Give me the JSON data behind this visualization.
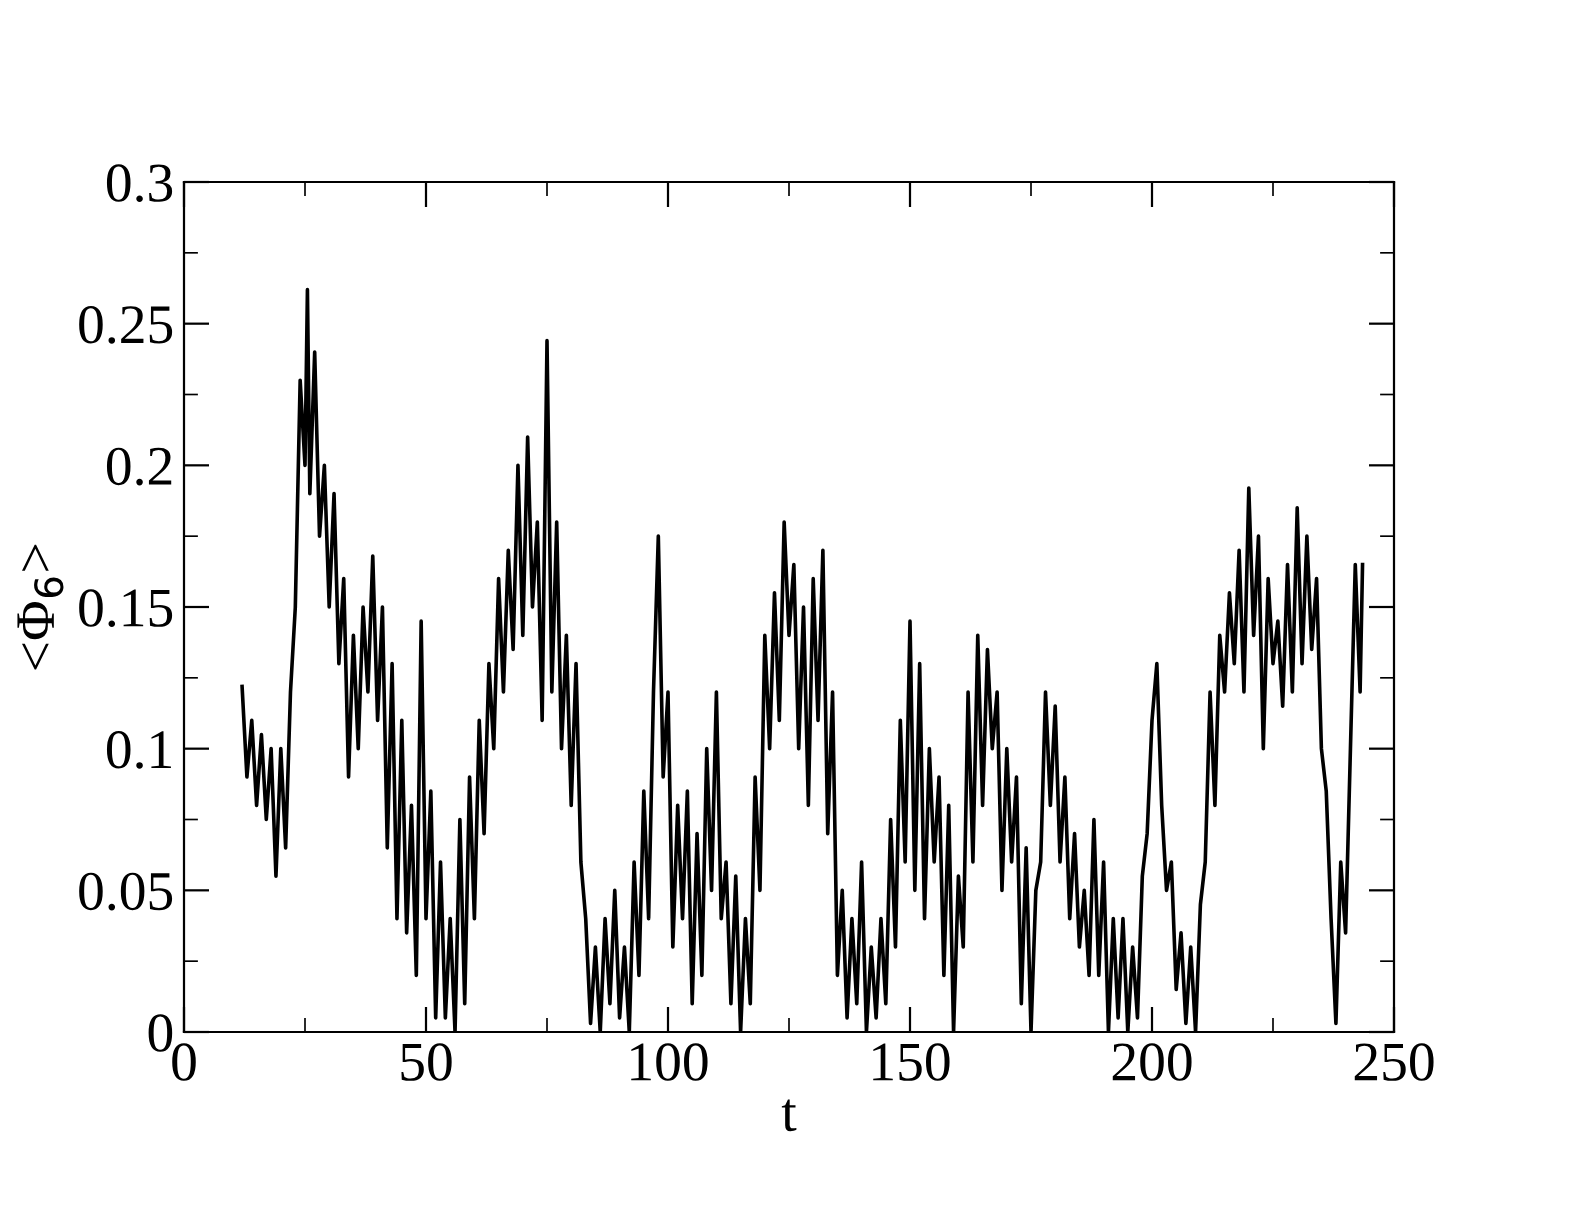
{
  "chart_data": {
    "type": "line",
    "xlabel": "t",
    "ylabel": "<Φ$_{6}$>",
    "xlim": [
      0,
      250
    ],
    "xticks": [
      0,
      50,
      100,
      150,
      200,
      250
    ],
    "ylim": [
      0,
      0.3
    ],
    "yticks": [
      0,
      0.05,
      0.1,
      0.15,
      0.2,
      0.25,
      0.3
    ],
    "grid": false,
    "legend": false,
    "marker": "none",
    "line_style": "solid",
    "series": [
      {
        "color": "#000000",
        "x": [
          12,
          13,
          14,
          15,
          16,
          17,
          18,
          19,
          20,
          21,
          22,
          23,
          24,
          25,
          25.5,
          26,
          27,
          28,
          29,
          30,
          31,
          32,
          33,
          34,
          35,
          36,
          37,
          38,
          39,
          40,
          41,
          42,
          43,
          44,
          45,
          46,
          47,
          48,
          49,
          50,
          51,
          52,
          53,
          54,
          55,
          56,
          57,
          58,
          59,
          60,
          61,
          62,
          63,
          64,
          65,
          66,
          67,
          68,
          69,
          70,
          71,
          72,
          73,
          74,
          75,
          76,
          77,
          78,
          79,
          80,
          81,
          82,
          83,
          84,
          85,
          86,
          87,
          88,
          89,
          90,
          91,
          92,
          93,
          94,
          95,
          96,
          97,
          98,
          99,
          100,
          101,
          102,
          103,
          104,
          105,
          106,
          107,
          108,
          109,
          110,
          111,
          112,
          113,
          114,
          115,
          116,
          117,
          118,
          119,
          120,
          121,
          122,
          123,
          124,
          125,
          126,
          127,
          128,
          129,
          130,
          131,
          132,
          133,
          134,
          135,
          136,
          137,
          138,
          139,
          140,
          141,
          142,
          143,
          144,
          145,
          146,
          147,
          148,
          149,
          150,
          151,
          152,
          153,
          154,
          155,
          156,
          157,
          158,
          159,
          160,
          161,
          162,
          163,
          164,
          165,
          166,
          167,
          168,
          169,
          170,
          171,
          172,
          173,
          174,
          175,
          176,
          177,
          178,
          179,
          180,
          181,
          182,
          183,
          184,
          185,
          186,
          187,
          188,
          189,
          190,
          191,
          192,
          193,
          194,
          195,
          196,
          197,
          198,
          199,
          200,
          201,
          202,
          203,
          204,
          205,
          206,
          207,
          208,
          209,
          210,
          211,
          212,
          213,
          214,
          215,
          216,
          217,
          218,
          219,
          220,
          221,
          222,
          223,
          224,
          225,
          226,
          227,
          228,
          229,
          230,
          231,
          232,
          233,
          234,
          235,
          236,
          237,
          238,
          239,
          240,
          241,
          242,
          243,
          243.5
        ],
        "values": [
          0.122,
          0.09,
          0.11,
          0.08,
          0.105,
          0.075,
          0.1,
          0.055,
          0.1,
          0.065,
          0.12,
          0.15,
          0.23,
          0.2,
          0.262,
          0.19,
          0.24,
          0.175,
          0.2,
          0.15,
          0.19,
          0.13,
          0.16,
          0.09,
          0.14,
          0.1,
          0.15,
          0.12,
          0.168,
          0.11,
          0.15,
          0.065,
          0.13,
          0.04,
          0.11,
          0.035,
          0.08,
          0.02,
          0.145,
          0.04,
          0.085,
          0.005,
          0.06,
          0.005,
          0.04,
          0.0,
          0.075,
          0.01,
          0.09,
          0.04,
          0.11,
          0.07,
          0.13,
          0.1,
          0.16,
          0.12,
          0.17,
          0.135,
          0.2,
          0.14,
          0.21,
          0.15,
          0.18,
          0.11,
          0.244,
          0.12,
          0.18,
          0.1,
          0.14,
          0.08,
          0.13,
          0.06,
          0.04,
          0.003,
          0.03,
          0.0,
          0.04,
          0.01,
          0.05,
          0.005,
          0.03,
          0.0,
          0.06,
          0.02,
          0.085,
          0.04,
          0.12,
          0.175,
          0.09,
          0.12,
          0.03,
          0.08,
          0.04,
          0.085,
          0.01,
          0.07,
          0.02,
          0.1,
          0.05,
          0.12,
          0.04,
          0.06,
          0.01,
          0.055,
          0.0,
          0.04,
          0.01,
          0.09,
          0.05,
          0.14,
          0.1,
          0.155,
          0.11,
          0.18,
          0.14,
          0.165,
          0.1,
          0.15,
          0.08,
          0.16,
          0.11,
          0.17,
          0.07,
          0.12,
          0.02,
          0.05,
          0.005,
          0.04,
          0.01,
          0.06,
          0.0,
          0.03,
          0.005,
          0.04,
          0.01,
          0.075,
          0.03,
          0.11,
          0.06,
          0.145,
          0.05,
          0.13,
          0.04,
          0.1,
          0.06,
          0.09,
          0.02,
          0.08,
          0.0,
          0.055,
          0.03,
          0.12,
          0.06,
          0.14,
          0.08,
          0.135,
          0.1,
          0.12,
          0.05,
          0.1,
          0.06,
          0.09,
          0.01,
          0.065,
          0.0,
          0.05,
          0.06,
          0.12,
          0.08,
          0.115,
          0.06,
          0.09,
          0.04,
          0.07,
          0.03,
          0.05,
          0.02,
          0.075,
          0.02,
          0.06,
          0.0,
          0.04,
          0.005,
          0.04,
          0.0,
          0.03,
          0.005,
          0.055,
          0.07,
          0.11,
          0.13,
          0.08,
          0.05,
          0.06,
          0.015,
          0.035,
          0.003,
          0.03,
          0.0,
          0.045,
          0.06,
          0.12,
          0.08,
          0.14,
          0.12,
          0.155,
          0.13,
          0.17,
          0.12,
          0.192,
          0.14,
          0.175,
          0.1,
          0.16,
          0.13,
          0.145,
          0.115,
          0.165,
          0.12,
          0.185,
          0.13,
          0.175,
          0.135,
          0.16,
          0.1,
          0.085,
          0.04,
          0.003,
          0.06,
          0.035,
          0.1,
          0.165,
          0.12,
          0.165
        ]
      }
    ]
  }
}
